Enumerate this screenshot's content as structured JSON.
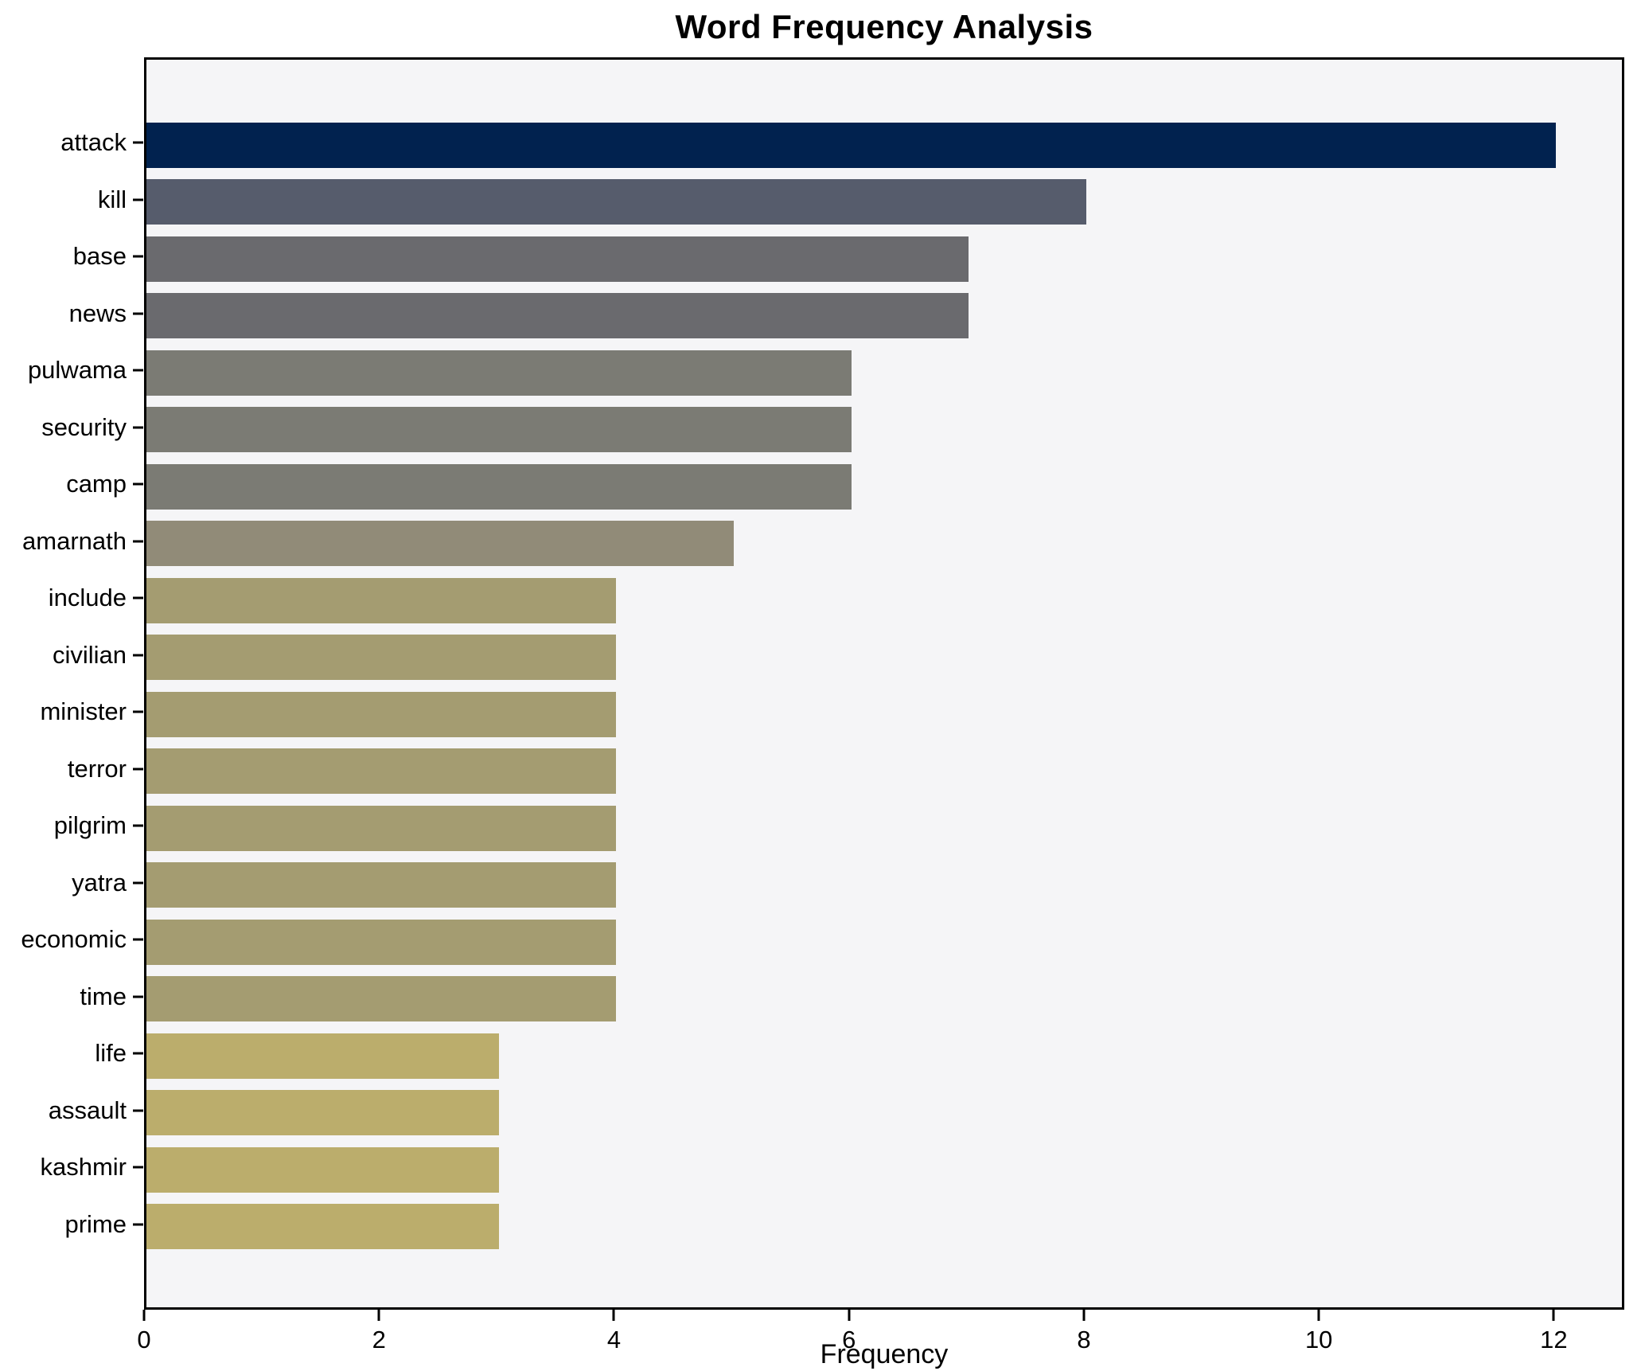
{
  "chart_data": {
    "type": "bar",
    "orientation": "horizontal",
    "title": "Word Frequency Analysis",
    "xlabel": "Frequency",
    "ylabel": "",
    "categories": [
      "attack",
      "kill",
      "base",
      "news",
      "pulwama",
      "security",
      "camp",
      "amarnath",
      "include",
      "civilian",
      "minister",
      "terror",
      "pilgrim",
      "yatra",
      "economic",
      "time",
      "life",
      "assault",
      "kashmir",
      "prime"
    ],
    "values": [
      12,
      8,
      7,
      7,
      6,
      6,
      6,
      5,
      4,
      4,
      4,
      4,
      4,
      4,
      4,
      4,
      3,
      3,
      3,
      3
    ],
    "bar_colors": [
      "#01224f",
      "#565c6c",
      "#6a6a6e",
      "#6a6a6e",
      "#7b7b74",
      "#7b7b74",
      "#7b7b74",
      "#918b78",
      "#a49c71",
      "#a49c71",
      "#a49c71",
      "#a49c71",
      "#a49c71",
      "#a49c71",
      "#a49c71",
      "#a49c71",
      "#bbad6c",
      "#bbad6c",
      "#bbad6c",
      "#bbad6c"
    ],
    "xlim": [
      0,
      12.6
    ],
    "xticks": [
      0,
      2,
      4,
      6,
      8,
      10,
      12
    ],
    "grid": false,
    "legend": false,
    "plot_bg": "#f5f5f7",
    "figure_bg": "#ffffff",
    "spine_color": "#000000",
    "colormap": "cividis-reversed-by-value"
  }
}
